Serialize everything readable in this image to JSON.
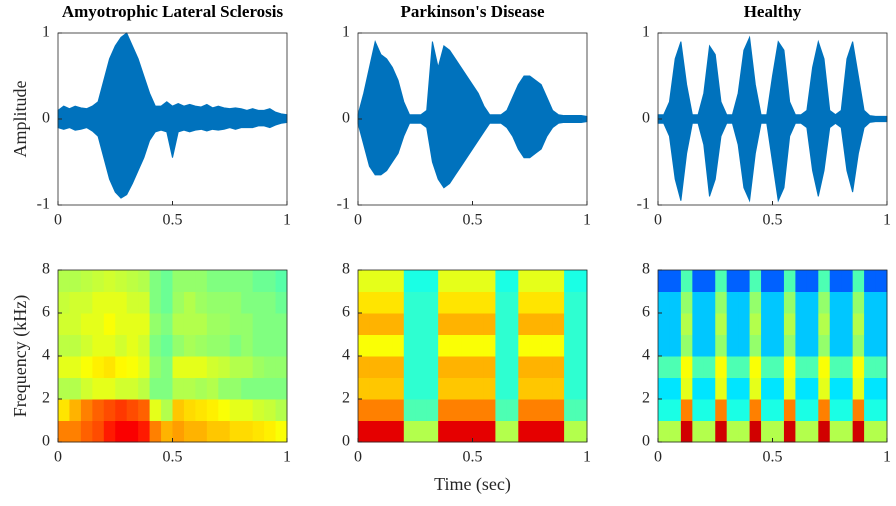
{
  "chart_data": [
    {
      "type": "waveform",
      "title": "Amyotrophic Lateral Sclerosis",
      "ylabel": "Amplitude",
      "color": "#0072bd",
      "xlim": [
        0,
        1
      ],
      "ylim": [
        -1,
        1
      ],
      "xticks": [
        0,
        0.5,
        1
      ],
      "yticks": [
        -1,
        0,
        1
      ],
      "x": [
        0,
        0.025,
        0.05,
        0.075,
        0.1,
        0.125,
        0.15,
        0.175,
        0.2,
        0.225,
        0.25,
        0.275,
        0.3,
        0.325,
        0.35,
        0.375,
        0.4,
        0.425,
        0.45,
        0.475,
        0.5,
        0.525,
        0.55,
        0.575,
        0.6,
        0.625,
        0.65,
        0.675,
        0.7,
        0.725,
        0.75,
        0.775,
        0.8,
        0.825,
        0.85,
        0.875,
        0.9,
        0.925,
        0.95,
        0.975,
        1
      ],
      "upper": [
        0.1,
        0.15,
        0.12,
        0.15,
        0.13,
        0.12,
        0.15,
        0.2,
        0.45,
        0.7,
        0.85,
        0.95,
        1.0,
        0.85,
        0.7,
        0.5,
        0.3,
        0.15,
        0.15,
        0.2,
        0.15,
        0.18,
        0.15,
        0.17,
        0.15,
        0.14,
        0.17,
        0.13,
        0.15,
        0.13,
        0.12,
        0.13,
        0.12,
        0.1,
        0.12,
        0.1,
        0.1,
        0.12,
        0.08,
        0.06,
        0.05
      ],
      "lower": [
        -0.1,
        -0.12,
        -0.1,
        -0.13,
        -0.12,
        -0.1,
        -0.14,
        -0.2,
        -0.45,
        -0.7,
        -0.85,
        -0.92,
        -0.88,
        -0.75,
        -0.6,
        -0.45,
        -0.25,
        -0.15,
        -0.13,
        -0.15,
        -0.45,
        -0.15,
        -0.13,
        -0.15,
        -0.13,
        -0.12,
        -0.14,
        -0.12,
        -0.13,
        -0.12,
        -0.1,
        -0.12,
        -0.1,
        -0.1,
        -0.1,
        -0.08,
        -0.08,
        -0.1,
        -0.07,
        -0.05,
        -0.04
      ]
    },
    {
      "type": "waveform",
      "title": "Parkinson's Disease",
      "color": "#0072bd",
      "xlim": [
        0,
        1
      ],
      "ylim": [
        -1,
        1
      ],
      "xticks": [
        0,
        0.5,
        1
      ],
      "yticks": [
        -1,
        0,
        1
      ],
      "x": [
        0,
        0.025,
        0.05,
        0.075,
        0.1,
        0.125,
        0.15,
        0.175,
        0.2,
        0.225,
        0.25,
        0.275,
        0.3,
        0.325,
        0.35,
        0.375,
        0.4,
        0.425,
        0.45,
        0.475,
        0.5,
        0.525,
        0.55,
        0.575,
        0.6,
        0.625,
        0.65,
        0.675,
        0.7,
        0.725,
        0.75,
        0.775,
        0.8,
        0.825,
        0.85,
        0.875,
        0.9,
        0.925,
        0.95,
        0.975,
        1
      ],
      "upper": [
        0.05,
        0.3,
        0.6,
        0.9,
        0.75,
        0.7,
        0.6,
        0.45,
        0.2,
        0.05,
        0.05,
        0.05,
        0.1,
        0.9,
        0.6,
        0.85,
        0.8,
        0.7,
        0.6,
        0.5,
        0.4,
        0.3,
        0.15,
        0.05,
        0.05,
        0.05,
        0.1,
        0.25,
        0.4,
        0.5,
        0.5,
        0.45,
        0.4,
        0.25,
        0.1,
        0.05,
        0.04,
        0.04,
        0.04,
        0.04,
        0.03
      ],
      "lower": [
        -0.05,
        -0.3,
        -0.55,
        -0.65,
        -0.65,
        -0.6,
        -0.5,
        -0.4,
        -0.2,
        -0.05,
        -0.05,
        -0.05,
        -0.1,
        -0.5,
        -0.7,
        -0.8,
        -0.75,
        -0.65,
        -0.55,
        -0.45,
        -0.35,
        -0.25,
        -0.15,
        -0.05,
        -0.05,
        -0.05,
        -0.1,
        -0.2,
        -0.35,
        -0.45,
        -0.45,
        -0.4,
        -0.35,
        -0.2,
        -0.1,
        -0.05,
        -0.04,
        -0.04,
        -0.04,
        -0.04,
        -0.03
      ]
    },
    {
      "type": "waveform",
      "title": "Healthy",
      "color": "#0072bd",
      "xlim": [
        0,
        1
      ],
      "ylim": [
        -1,
        1
      ],
      "xticks": [
        0,
        0.5,
        1
      ],
      "yticks": [
        -1,
        0,
        1
      ],
      "x": [
        0,
        0.025,
        0.05,
        0.075,
        0.1,
        0.125,
        0.15,
        0.175,
        0.2,
        0.225,
        0.25,
        0.275,
        0.3,
        0.325,
        0.35,
        0.375,
        0.4,
        0.425,
        0.45,
        0.475,
        0.5,
        0.525,
        0.55,
        0.575,
        0.6,
        0.625,
        0.65,
        0.675,
        0.7,
        0.725,
        0.75,
        0.775,
        0.8,
        0.825,
        0.85,
        0.875,
        0.9,
        0.925,
        0.95,
        0.975,
        1
      ],
      "upper": [
        0.05,
        0.05,
        0.2,
        0.7,
        0.9,
        0.4,
        0.05,
        0.05,
        0.3,
        0.85,
        0.75,
        0.2,
        0.05,
        0.05,
        0.3,
        0.8,
        0.95,
        0.4,
        0.05,
        0.05,
        0.5,
        0.9,
        0.8,
        0.2,
        0.05,
        0.05,
        0.1,
        0.6,
        0.9,
        0.7,
        0.1,
        0.05,
        0.1,
        0.7,
        0.9,
        0.5,
        0.1,
        0.04,
        0.03,
        0.03,
        0.03
      ],
      "lower": [
        -0.05,
        -0.05,
        -0.2,
        -0.7,
        -0.95,
        -0.4,
        -0.05,
        -0.05,
        -0.3,
        -0.9,
        -0.7,
        -0.2,
        -0.05,
        -0.05,
        -0.3,
        -0.8,
        -0.95,
        -0.4,
        -0.05,
        -0.05,
        -0.5,
        -0.95,
        -0.8,
        -0.2,
        -0.05,
        -0.05,
        -0.1,
        -0.6,
        -0.9,
        -0.6,
        -0.1,
        -0.05,
        -0.1,
        -0.6,
        -0.85,
        -0.4,
        -0.1,
        -0.04,
        -0.03,
        -0.03,
        -0.03
      ]
    },
    {
      "type": "heatmap",
      "ylabel": "Frequency (kHz)",
      "xlim": [
        0,
        1
      ],
      "ylim": [
        0,
        8
      ],
      "xticks": [
        0,
        0.5,
        1
      ],
      "yticks": [
        0,
        2,
        4,
        6,
        8
      ],
      "z": [
        [
          0.75,
          0.75,
          0.78,
          0.8,
          0.85,
          0.88,
          0.88,
          0.85,
          0.75,
          0.7,
          0.72,
          0.7,
          0.7,
          0.68,
          0.68,
          0.66,
          0.66,
          0.65,
          0.64,
          0.62
        ],
        [
          0.65,
          0.7,
          0.75,
          0.78,
          0.8,
          0.82,
          0.8,
          0.78,
          0.6,
          0.55,
          0.68,
          0.66,
          0.65,
          0.64,
          0.62,
          0.6,
          0.6,
          0.58,
          0.57,
          0.55
        ],
        [
          0.55,
          0.55,
          0.58,
          0.6,
          0.6,
          0.58,
          0.58,
          0.56,
          0.5,
          0.5,
          0.55,
          0.55,
          0.54,
          0.55,
          0.52,
          0.52,
          0.5,
          0.5,
          0.5,
          0.5
        ],
        [
          0.6,
          0.6,
          0.62,
          0.64,
          0.65,
          0.63,
          0.62,
          0.6,
          0.52,
          0.5,
          0.6,
          0.6,
          0.6,
          0.58,
          0.57,
          0.55,
          0.55,
          0.53,
          0.52,
          0.52
        ],
        [
          0.56,
          0.56,
          0.58,
          0.6,
          0.6,
          0.58,
          0.6,
          0.58,
          0.5,
          0.48,
          0.52,
          0.54,
          0.53,
          0.52,
          0.52,
          0.5,
          0.52,
          0.5,
          0.5,
          0.5
        ],
        [
          0.58,
          0.58,
          0.6,
          0.6,
          0.62,
          0.6,
          0.6,
          0.6,
          0.52,
          0.5,
          0.55,
          0.55,
          0.55,
          0.53,
          0.53,
          0.52,
          0.52,
          0.5,
          0.5,
          0.5
        ],
        [
          0.57,
          0.58,
          0.58,
          0.6,
          0.6,
          0.6,
          0.58,
          0.58,
          0.5,
          0.48,
          0.53,
          0.55,
          0.53,
          0.52,
          0.52,
          0.52,
          0.5,
          0.5,
          0.5,
          0.48
        ],
        [
          0.55,
          0.55,
          0.56,
          0.57,
          0.58,
          0.57,
          0.56,
          0.55,
          0.5,
          0.48,
          0.52,
          0.52,
          0.52,
          0.5,
          0.5,
          0.5,
          0.5,
          0.48,
          0.48,
          0.46
        ]
      ]
    },
    {
      "type": "heatmap",
      "xlabel": "Time (sec)",
      "xlim": [
        0,
        1
      ],
      "ylim": [
        0,
        8
      ],
      "xticks": [
        0,
        0.5,
        1
      ],
      "yticks": [
        0,
        2,
        4,
        6,
        8
      ],
      "z": [
        [
          0.9,
          0.9,
          0.9,
          0.9,
          0.55,
          0.55,
          0.55,
          0.9,
          0.9,
          0.9,
          0.9,
          0.9,
          0.55,
          0.55,
          0.9,
          0.9,
          0.9,
          0.9,
          0.55,
          0.55
        ],
        [
          0.75,
          0.75,
          0.75,
          0.75,
          0.45,
          0.45,
          0.45,
          0.75,
          0.75,
          0.75,
          0.75,
          0.75,
          0.45,
          0.45,
          0.75,
          0.75,
          0.75,
          0.75,
          0.45,
          0.45
        ],
        [
          0.68,
          0.68,
          0.68,
          0.68,
          0.42,
          0.42,
          0.42,
          0.68,
          0.68,
          0.68,
          0.68,
          0.68,
          0.42,
          0.42,
          0.68,
          0.68,
          0.68,
          0.68,
          0.42,
          0.42
        ],
        [
          0.7,
          0.7,
          0.7,
          0.7,
          0.42,
          0.42,
          0.42,
          0.7,
          0.7,
          0.7,
          0.7,
          0.7,
          0.42,
          0.42,
          0.7,
          0.7,
          0.7,
          0.7,
          0.42,
          0.42
        ],
        [
          0.62,
          0.62,
          0.62,
          0.62,
          0.42,
          0.42,
          0.42,
          0.62,
          0.62,
          0.62,
          0.62,
          0.62,
          0.42,
          0.42,
          0.62,
          0.62,
          0.62,
          0.62,
          0.42,
          0.42
        ],
        [
          0.7,
          0.7,
          0.7,
          0.7,
          0.42,
          0.42,
          0.42,
          0.7,
          0.7,
          0.7,
          0.7,
          0.7,
          0.42,
          0.42,
          0.7,
          0.7,
          0.7,
          0.7,
          0.42,
          0.42
        ],
        [
          0.65,
          0.65,
          0.65,
          0.65,
          0.42,
          0.42,
          0.42,
          0.65,
          0.65,
          0.65,
          0.65,
          0.65,
          0.42,
          0.42,
          0.65,
          0.65,
          0.65,
          0.65,
          0.42,
          0.42
        ],
        [
          0.6,
          0.6,
          0.6,
          0.6,
          0.4,
          0.4,
          0.4,
          0.6,
          0.6,
          0.6,
          0.6,
          0.6,
          0.4,
          0.4,
          0.6,
          0.6,
          0.6,
          0.6,
          0.4,
          0.4
        ]
      ]
    },
    {
      "type": "heatmap",
      "xlim": [
        0,
        1
      ],
      "ylim": [
        0,
        8
      ],
      "xticks": [
        0,
        0.5,
        1
      ],
      "yticks": [
        0,
        2,
        4,
        6,
        8
      ],
      "z": [
        [
          0.55,
          0.55,
          0.92,
          0.55,
          0.55,
          0.92,
          0.55,
          0.55,
          0.92,
          0.55,
          0.55,
          0.92,
          0.55,
          0.55,
          0.92,
          0.55,
          0.55,
          0.92,
          0.55,
          0.55
        ],
        [
          0.4,
          0.4,
          0.75,
          0.4,
          0.4,
          0.75,
          0.4,
          0.4,
          0.75,
          0.4,
          0.4,
          0.75,
          0.4,
          0.4,
          0.75,
          0.4,
          0.4,
          0.75,
          0.4,
          0.4
        ],
        [
          0.35,
          0.35,
          0.6,
          0.35,
          0.35,
          0.6,
          0.35,
          0.35,
          0.6,
          0.35,
          0.35,
          0.6,
          0.35,
          0.35,
          0.6,
          0.35,
          0.35,
          0.6,
          0.35,
          0.35
        ],
        [
          0.45,
          0.45,
          0.62,
          0.45,
          0.45,
          0.62,
          0.45,
          0.45,
          0.62,
          0.45,
          0.45,
          0.62,
          0.45,
          0.45,
          0.62,
          0.45,
          0.45,
          0.62,
          0.45,
          0.45
        ],
        [
          0.32,
          0.32,
          0.52,
          0.32,
          0.32,
          0.52,
          0.32,
          0.32,
          0.52,
          0.32,
          0.32,
          0.52,
          0.32,
          0.32,
          0.52,
          0.32,
          0.32,
          0.52,
          0.32,
          0.32
        ],
        [
          0.32,
          0.32,
          0.55,
          0.32,
          0.32,
          0.55,
          0.32,
          0.32,
          0.55,
          0.32,
          0.32,
          0.55,
          0.32,
          0.32,
          0.55,
          0.32,
          0.32,
          0.55,
          0.32,
          0.32
        ],
        [
          0.32,
          0.32,
          0.52,
          0.32,
          0.32,
          0.52,
          0.32,
          0.32,
          0.52,
          0.32,
          0.32,
          0.52,
          0.32,
          0.32,
          0.52,
          0.32,
          0.32,
          0.52,
          0.32,
          0.32
        ],
        [
          0.22,
          0.22,
          0.45,
          0.22,
          0.22,
          0.45,
          0.22,
          0.22,
          0.45,
          0.22,
          0.22,
          0.45,
          0.22,
          0.22,
          0.45,
          0.22,
          0.22,
          0.45,
          0.22,
          0.22
        ]
      ]
    }
  ]
}
